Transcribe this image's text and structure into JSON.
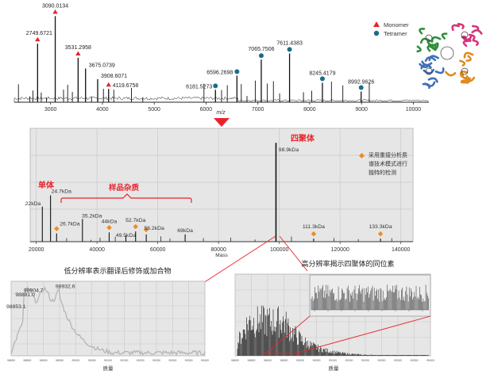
{
  "colors": {
    "accent_red": "#e8242a",
    "teal": "#1b6e86",
    "orange": "#f08c1e",
    "panel_bg": "#e6e6e6",
    "grid": "#c9c9c9",
    "trace": "#111111"
  },
  "chart_data": [
    {
      "id": "native-ms",
      "type": "line",
      "xlabel": "m/z",
      "xlim": [
        2300,
        10300
      ],
      "xticks": [
        3000,
        4000,
        5000,
        6000,
        7000,
        8000,
        9000,
        10000
      ],
      "tick_labels": [
        "3000",
        "4000",
        "5000",
        "6000",
        "7000",
        "8000",
        "9000",
        "10000"
      ],
      "legend": [
        {
          "label": "Monomer",
          "marker": "triangle",
          "color": "#e8242a"
        },
        {
          "label": "Tetramer",
          "marker": "circle",
          "color": "#1b6e86"
        }
      ],
      "legend_position": "top-right",
      "peaks": [
        {
          "x": 2749.6721,
          "label": "2749.6721",
          "marker": "triangle",
          "rel": 0.66
        },
        {
          "x": 3090.0134,
          "label": "3090.0134",
          "marker": "triangle",
          "rel": 0.97
        },
        {
          "x": 3531.2958,
          "label": "3531.2958",
          "marker": "triangle",
          "rel": 0.5
        },
        {
          "x": 3675.0739,
          "label": "3675.0739",
          "marker": "none",
          "rel": 0.38
        },
        {
          "x": 3908.6071,
          "label": "3908.6071",
          "marker": "none",
          "rel": 0.26
        },
        {
          "x": 4119.6758,
          "label": "4119.6758",
          "marker": "triangle",
          "rel": 0.15
        },
        {
          "x": 6181.5273,
          "label": "6181.5273",
          "marker": "circle",
          "rel": 0.14
        },
        {
          "x": 6596.2698,
          "label": "6596.2698",
          "marker": "circle",
          "rel": 0.3
        },
        {
          "x": 7065.7506,
          "label": "7065.7506",
          "marker": "circle",
          "rel": 0.48
        },
        {
          "x": 7611.4383,
          "label": "7611.4383",
          "marker": "circle",
          "rel": 0.55
        },
        {
          "x": 8245.4179,
          "label": "8245.4179",
          "marker": "circle",
          "rel": 0.22
        },
        {
          "x": 8992.9626,
          "label": "8992.9626",
          "marker": "circle",
          "rel": 0.12
        }
      ]
    },
    {
      "id": "deconvoluted-mass",
      "type": "line",
      "xlabel": "Mass",
      "xlim": [
        18000,
        144000
      ],
      "xticks": [
        20000,
        40000,
        60000,
        80000,
        100000,
        120000,
        140000
      ],
      "tick_labels": [
        "20000",
        "40000",
        "60000",
        "80000",
        "100000",
        "120000",
        "140000"
      ],
      "annotations": {
        "tetramer_label": "四聚体",
        "monomer_label": "单体",
        "impurity_label": "样品杂质",
        "legend_text": [
          "采用重接分析质",
          "谱技术模式进行",
          "独特的检测"
        ]
      },
      "peaks": [
        {
          "x": 22000,
          "label": "22kDa",
          "rel": 0.34,
          "marker": false
        },
        {
          "x": 24700,
          "label": "24.7kDa",
          "rel": 0.45,
          "marker": false
        },
        {
          "x": 26700,
          "label": "26.7kDa",
          "rel": 0.08,
          "marker": true
        },
        {
          "x": 35200,
          "label": "35.2kDa",
          "rel": 0.22,
          "marker": false
        },
        {
          "x": 44000,
          "label": "44kDa",
          "rel": 0.09,
          "marker": true
        },
        {
          "x": 49500,
          "label": "49.5kDa",
          "rel": 0.06,
          "marker": false
        },
        {
          "x": 52700,
          "label": "52.7kDa",
          "rel": 0.1,
          "marker": true
        },
        {
          "x": 56200,
          "label": "56.2kDa",
          "rel": 0.07,
          "marker": true
        },
        {
          "x": 69000,
          "label": "69kDa",
          "rel": 0.07,
          "marker": false
        },
        {
          "x": 98900,
          "label": "98.9kDa",
          "rel": 0.96,
          "marker": false
        },
        {
          "x": 111300,
          "label": "111.3kDa",
          "rel": 0.03,
          "marker": true
        },
        {
          "x": 133300,
          "label": "133.3kDa",
          "rel": 0.03,
          "marker": true
        }
      ]
    },
    {
      "id": "low-resolution-zoom",
      "type": "line",
      "title": "低分辨率表示翻译后修饰或加合物",
      "xlabel": "质量",
      "xlim": [
        98800,
        99400
      ],
      "ylim": [
        0,
        100
      ],
      "xticks": [
        98800,
        98850,
        98900,
        98950,
        99000,
        99050,
        99100,
        99150,
        99200,
        99250,
        99300,
        99350,
        99400
      ],
      "peaks": [
        {
          "x": 98853.1,
          "label": "98853.1",
          "rel": 0.68
        },
        {
          "x": 98881.0,
          "label": "98881.0",
          "rel": 0.84
        },
        {
          "x": 98904.7,
          "label": "98904.7",
          "rel": 0.9
        },
        {
          "x": 98932.6,
          "label": "98932.6",
          "rel": 0.95
        }
      ]
    },
    {
      "id": "high-resolution-zoom",
      "type": "line",
      "title": "高分辨率揭示四聚体的同位素",
      "xlabel": "质量",
      "xlim": [
        98800,
        99400
      ],
      "xticks": [
        98800,
        98850,
        98900,
        98950,
        99000,
        99050,
        99100,
        99150,
        99200,
        99250,
        99300,
        99350,
        99400
      ]
    }
  ]
}
